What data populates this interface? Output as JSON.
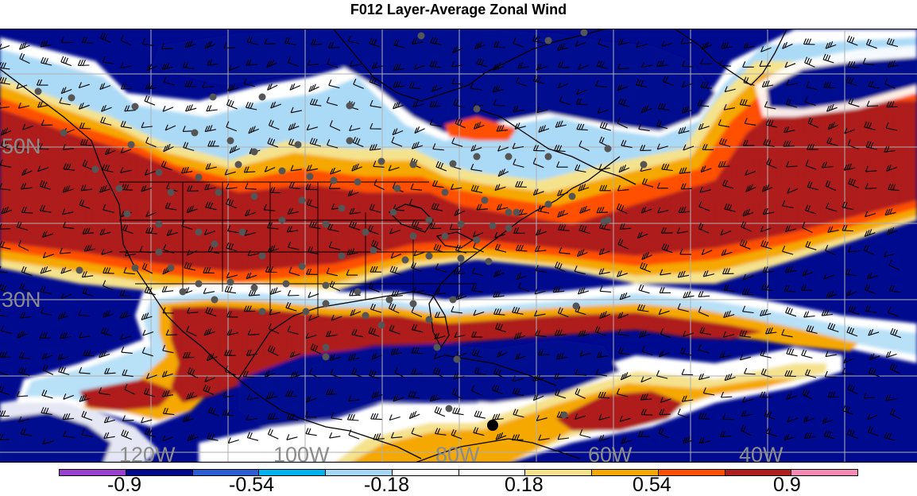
{
  "title": "F012 Layer-Average Zonal Wind",
  "map": {
    "latitude_labels": [
      "50N",
      "30N"
    ],
    "longitude_labels": [
      "120W",
      "100W",
      "80W",
      "60W",
      "40W"
    ],
    "label_color": "#8c8c8c",
    "graticule_color": "#b0b0b0",
    "coastline_color": "#000000",
    "station_marker_color": "#555555"
  },
  "colorbar": {
    "colors": [
      "#9b3fd1",
      "#000a8f",
      "#2c5fd6",
      "#00b4f0",
      "#a6d8f5",
      "#ffffff",
      "#ffffff",
      "#f5e28c",
      "#f5a800",
      "#ff4f00",
      "#b01e1e",
      "#f78bb5"
    ],
    "tick_labels": [
      "-0.9",
      "-0.54",
      "-0.18",
      "0.18",
      "0.54",
      "0.9"
    ]
  }
}
